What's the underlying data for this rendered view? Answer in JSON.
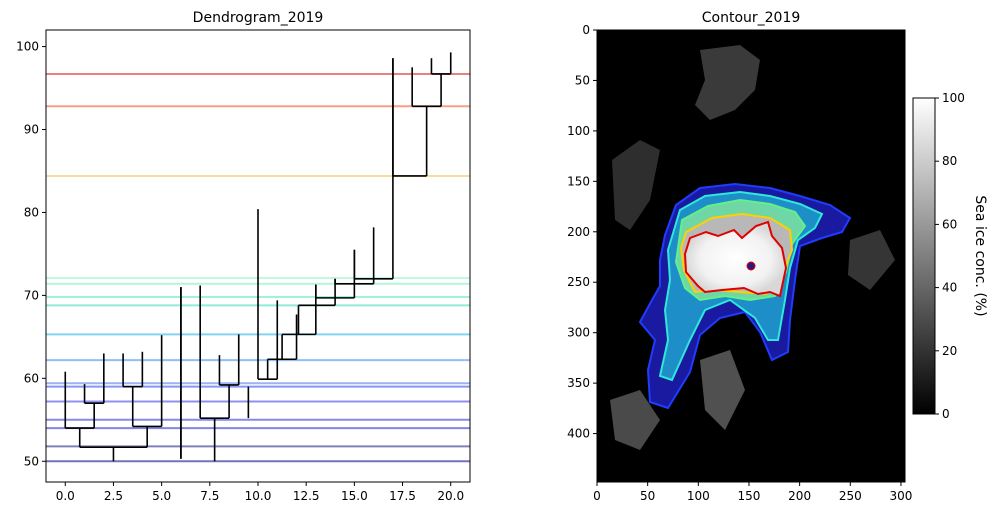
{
  "charts": [
    {
      "type": "dendrogram",
      "title": "Dendrogram_2019",
      "xlim": [
        -1,
        21
      ],
      "ylim": [
        47.5,
        102
      ],
      "x_ticks": [
        0.0,
        2.5,
        5.0,
        7.5,
        10.0,
        12.5,
        15.0,
        17.5,
        20.0
      ],
      "x_tick_labels": [
        "0.0",
        "2.5",
        "5.0",
        "7.5",
        "10.0",
        "12.5",
        "15.0",
        "17.5",
        "20.0"
      ],
      "y_ticks": [
        50,
        60,
        70,
        80,
        90,
        100
      ],
      "y_tick_labels": [
        "50",
        "60",
        "70",
        "80",
        "90",
        "100"
      ],
      "threshold_lines": [
        {
          "y": 50.0,
          "color": "#5a5aa8"
        },
        {
          "y": 51.8,
          "color": "#6a6ab0"
        },
        {
          "y": 54.0,
          "color": "#6f6fe0"
        },
        {
          "y": 55.0,
          "color": "#7373e6"
        },
        {
          "y": 57.2,
          "color": "#7d7df0"
        },
        {
          "y": 59.0,
          "color": "#6e86ee"
        },
        {
          "y": 59.4,
          "color": "#8ca6ee"
        },
        {
          "y": 62.2,
          "color": "#7ab4f6"
        },
        {
          "y": 65.3,
          "color": "#6ccdf2"
        },
        {
          "y": 68.8,
          "color": "#7fe6d6"
        },
        {
          "y": 69.8,
          "color": "#8ff0d2"
        },
        {
          "y": 71.4,
          "color": "#a8f4d4"
        },
        {
          "y": 72.1,
          "color": "#b8f6da"
        },
        {
          "y": 84.4,
          "color": "#f4d888"
        },
        {
          "y": 92.8,
          "color": "#f49070"
        },
        {
          "y": 96.7,
          "color": "#e86a6a"
        }
      ],
      "leaves": [
        {
          "x": 0,
          "top": 60.8
        },
        {
          "x": 1,
          "top": 59.3
        },
        {
          "x": 2,
          "top": 63.0
        },
        {
          "x": 3,
          "top": 63.0
        },
        {
          "x": 4,
          "top": 63.2
        },
        {
          "x": 5,
          "top": 65.2
        },
        {
          "x": 6,
          "top": 71.0
        },
        {
          "x": 7,
          "top": 71.2
        },
        {
          "x": 8,
          "top": 62.8
        },
        {
          "x": 9,
          "top": 65.3
        },
        {
          "x": 10,
          "top": 80.4
        },
        {
          "x": 11,
          "top": 69.4
        },
        {
          "x": 12,
          "top": 67.7
        },
        {
          "x": 13,
          "top": 71.3
        },
        {
          "x": 14,
          "top": 72.0
        },
        {
          "x": 15,
          "top": 75.5
        },
        {
          "x": 16,
          "top": 78.2
        },
        {
          "x": 17,
          "top": 98.6
        },
        {
          "x": 18,
          "top": 97.5
        },
        {
          "x": 19,
          "top": 98.6
        },
        {
          "x": 20,
          "top": 99.3
        }
      ],
      "merges": [
        {
          "left": 1,
          "right": 2,
          "height": 57.0,
          "pos": 1.5
        },
        {
          "left": 0,
          "right": 1.5,
          "height": 54.0,
          "pos": 0.75
        },
        {
          "left": 3,
          "right": 4,
          "height": 59.0,
          "pos": 3.5
        },
        {
          "left": 3.5,
          "right": 5,
          "height": 54.2,
          "pos": 4.25
        },
        {
          "left": 0.75,
          "right": 4.25,
          "height": 51.7,
          "pos": 2.5
        },
        {
          "left": 8,
          "right": 9,
          "height": 59.2,
          "pos": 8.5
        },
        {
          "left": 7,
          "right": 8.5,
          "height": 55.2,
          "pos": 7.75
        },
        {
          "left": 10,
          "right": 11,
          "height": 59.9,
          "pos": 10.5
        },
        {
          "left": 10.5,
          "right": 12,
          "height": 62.3,
          "pos": 11.25
        },
        {
          "left": 11.25,
          "right": 13,
          "height": 65.3,
          "pos": 12.1
        },
        {
          "left": 12.1,
          "right": 14,
          "height": 68.8,
          "pos": 13.0
        },
        {
          "left": 13.0,
          "right": 15,
          "height": 69.7,
          "pos": 14.0
        },
        {
          "left": 14.0,
          "right": 16,
          "height": 71.4,
          "pos": 15.0
        },
        {
          "left": 15.0,
          "right": 17.0,
          "height": 72.0,
          "pos": 16.0
        },
        {
          "left": 19,
          "right": 20,
          "height": 96.7,
          "pos": 19.5
        },
        {
          "left": 18,
          "right": 19.5,
          "height": 92.8,
          "pos": 18.75
        },
        {
          "left": 17,
          "right": 18.75,
          "height": 84.4,
          "pos": 17.9
        }
      ],
      "root_stubs": [
        {
          "x": 2.5,
          "from": 51.7,
          "to": 50.0
        },
        {
          "x": 6,
          "from": 71.0,
          "to": 50.3
        },
        {
          "x": 7.75,
          "from": 55.2,
          "to": 50.0
        },
        {
          "x": 9.5,
          "from": 59.0,
          "to": 55.2
        }
      ]
    },
    {
      "type": "heatmap",
      "title": "Contour_2019",
      "xlim": [
        0,
        304
      ],
      "ylim": [
        448,
        0
      ],
      "x_ticks": [
        0,
        50,
        100,
        150,
        200,
        250,
        300
      ],
      "x_tick_labels": [
        "0",
        "50",
        "100",
        "150",
        "200",
        "250",
        "300"
      ],
      "y_ticks": [
        0,
        50,
        100,
        150,
        200,
        250,
        300,
        350,
        400
      ],
      "y_tick_labels": [
        "0",
        "50",
        "100",
        "150",
        "200",
        "250",
        "300",
        "350",
        "400"
      ],
      "colorbar": {
        "label": "Sea ice conc. (%)",
        "min": 0,
        "max": 100,
        "ticks": [
          0,
          20,
          40,
          60,
          80,
          100
        ],
        "tick_labels": [
          "0",
          "20",
          "40",
          "60",
          "80",
          "100"
        ]
      }
    }
  ]
}
